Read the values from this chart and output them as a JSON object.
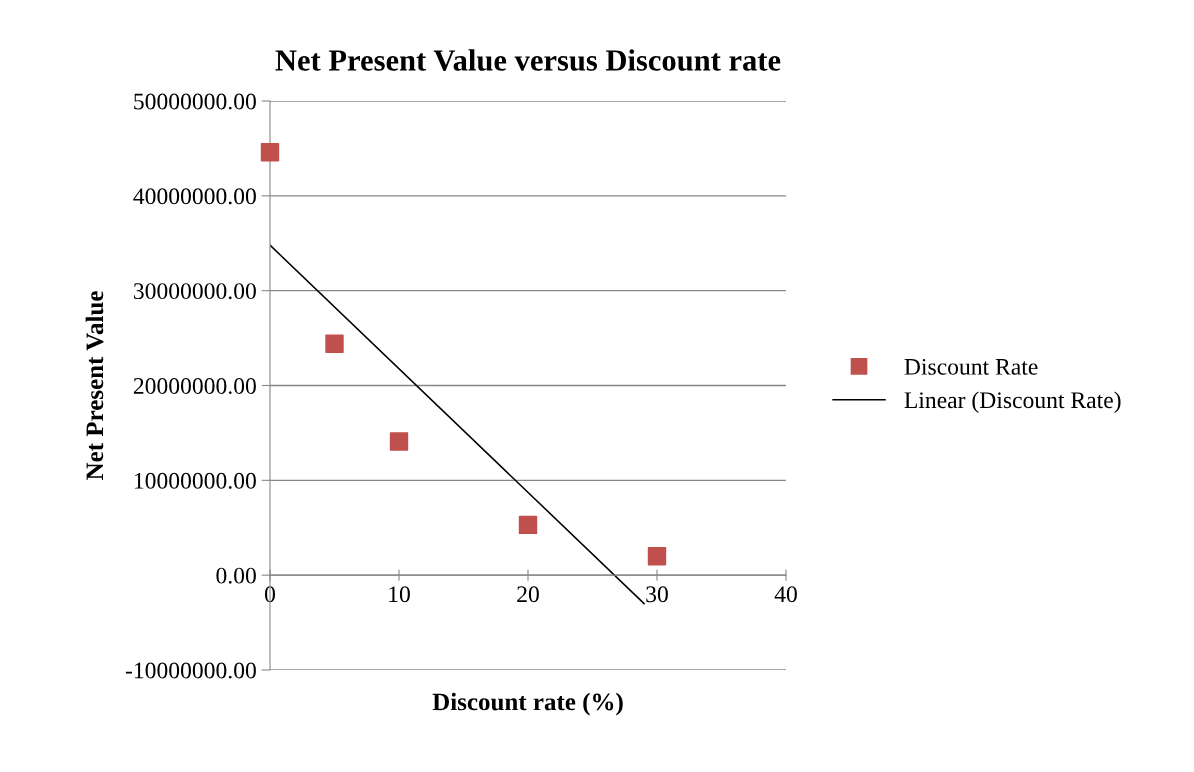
{
  "chart_data": {
    "type": "scatter",
    "title": "Net Present Value versus Discount rate",
    "xlabel": "Discount rate (%)",
    "ylabel": "Net Present Value",
    "series": [
      {
        "name": "Discount Rate",
        "color": "#c0504d",
        "marker": "square",
        "x": [
          0,
          5,
          10,
          20,
          30
        ],
        "values": [
          44600000,
          24400000,
          14100000,
          5300000,
          2000000
        ]
      },
      {
        "name": "Linear (Discount Rate)",
        "type": "line",
        "color": "#000000",
        "marker": "none",
        "line_style": "solid",
        "x": [
          0,
          29
        ],
        "values": [
          34800000,
          -3000000
        ]
      }
    ],
    "xlim": [
      0,
      40
    ],
    "xticks": [
      0,
      10,
      20,
      30,
      40
    ],
    "ylim": [
      -10000000,
      50000000
    ],
    "yticks": [
      {
        "value": -10000000,
        "label": "-10000000.00"
      },
      {
        "value": 0,
        "label": "0.00"
      },
      {
        "value": 10000000,
        "label": "10000000.00"
      },
      {
        "value": 20000000,
        "label": "20000000.00"
      },
      {
        "value": 30000000,
        "label": "30000000.00"
      },
      {
        "value": 40000000,
        "label": "40000000.00"
      },
      {
        "value": 50000000,
        "label": "50000000.00"
      }
    ],
    "grid": "y",
    "legend": "right"
  }
}
